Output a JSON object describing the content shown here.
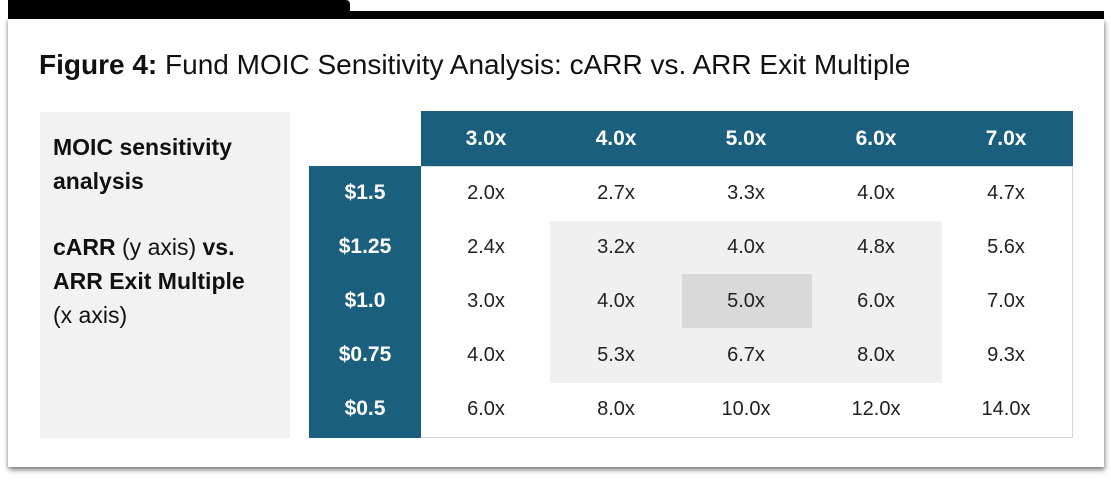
{
  "figure": {
    "label": "Figure 4:",
    "title": " Fund MOIC Sensitivity Analysis: cARR vs. ARR Exit Multiple"
  },
  "side_panel": {
    "line1": "MOIC sensitivity",
    "line2": "analysis",
    "carr": "cARR",
    "y_axis_text": " (y axis) ",
    "vs": "vs.",
    "arr_exit": "ARR Exit Multiple",
    "x_axis_text": "(x axis)"
  },
  "colors": {
    "header_fill": "#1b5f7f",
    "highlight_light": "#f0f0f0",
    "highlight_dark": "#d9d9d9"
  },
  "chart_data": {
    "type": "table",
    "title": "Fund MOIC Sensitivity Analysis: cARR vs. ARR Exit Multiple",
    "columns": [
      "3.0x",
      "4.0x",
      "5.0x",
      "6.0x",
      "7.0x"
    ],
    "rows": [
      "$1.5",
      "$1.25",
      "$1.0",
      "$0.75",
      "$0.5"
    ],
    "values": [
      [
        "2.0x",
        "2.7x",
        "3.3x",
        "4.0x",
        "4.7x"
      ],
      [
        "2.4x",
        "3.2x",
        "4.0x",
        "4.8x",
        "5.6x"
      ],
      [
        "3.0x",
        "4.0x",
        "5.0x",
        "6.0x",
        "7.0x"
      ],
      [
        "4.0x",
        "5.3x",
        "6.7x",
        "8.0x",
        "9.3x"
      ],
      [
        "6.0x",
        "8.0x",
        "10.0x",
        "12.0x",
        "14.0x"
      ]
    ]
  }
}
